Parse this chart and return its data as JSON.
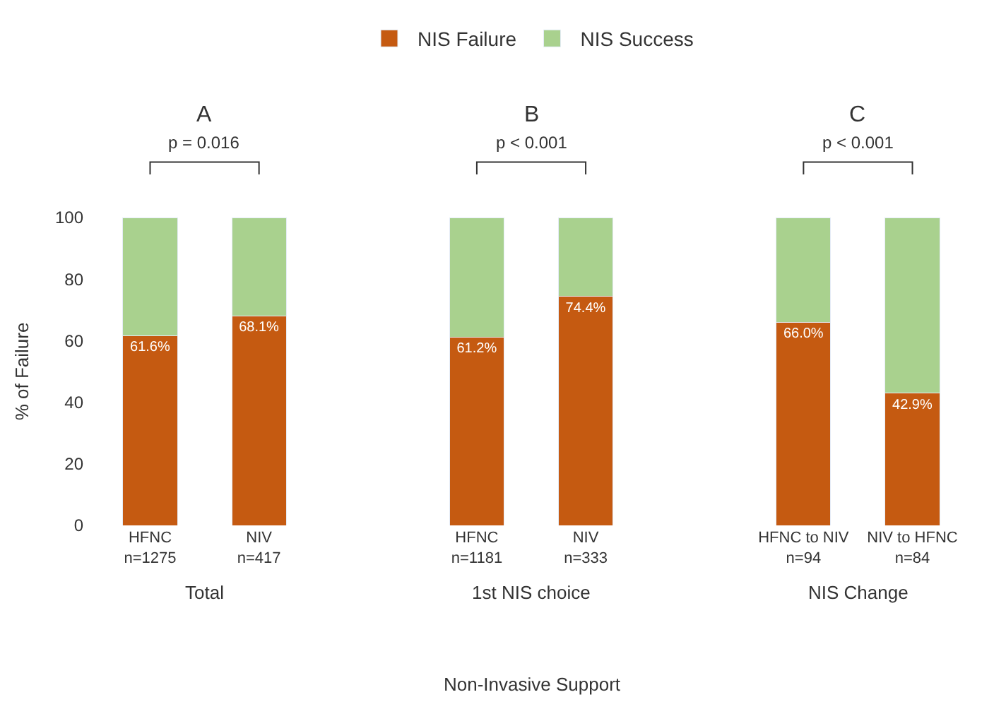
{
  "chart_data": {
    "type": "bar",
    "stacked": true,
    "ylabel": "% of Failure",
    "categories": [
      "HFNC\nn=1275",
      "NIV\nn=417",
      null,
      "HFNC\nn=1181",
      "NIV\nn=333",
      null,
      "HFNC to NIV\nn=94",
      "NIV to HFNC\nn=84"
    ],
    "series": [
      {
        "name": "NIS Failure",
        "color": "#c55a11",
        "values": [
          61.6,
          68.1,
          null,
          61.2,
          74.4,
          null,
          66.0,
          42.9
        ],
        "value_labels": [
          "61.6%",
          "68.1%",
          null,
          "61.2%",
          "74.4%",
          null,
          "66.0%",
          "42.9%"
        ]
      },
      {
        "name": "NIS Success",
        "color": "#a9d18e",
        "values": [
          38.4,
          31.9,
          null,
          38.8,
          25.6,
          null,
          34.0,
          57.1
        ]
      }
    ],
    "ylim": [
      0,
      100
    ],
    "yticks": [
      0,
      20,
      40,
      60,
      80,
      100
    ],
    "legend": "top",
    "annotations": [
      "A",
      "B",
      "C",
      "p = 0.016",
      "p < 0.001",
      "p < 0.001",
      "Total",
      "1st NIS choice",
      "NIS Change",
      "Non-Invasive Support"
    ]
  }
}
